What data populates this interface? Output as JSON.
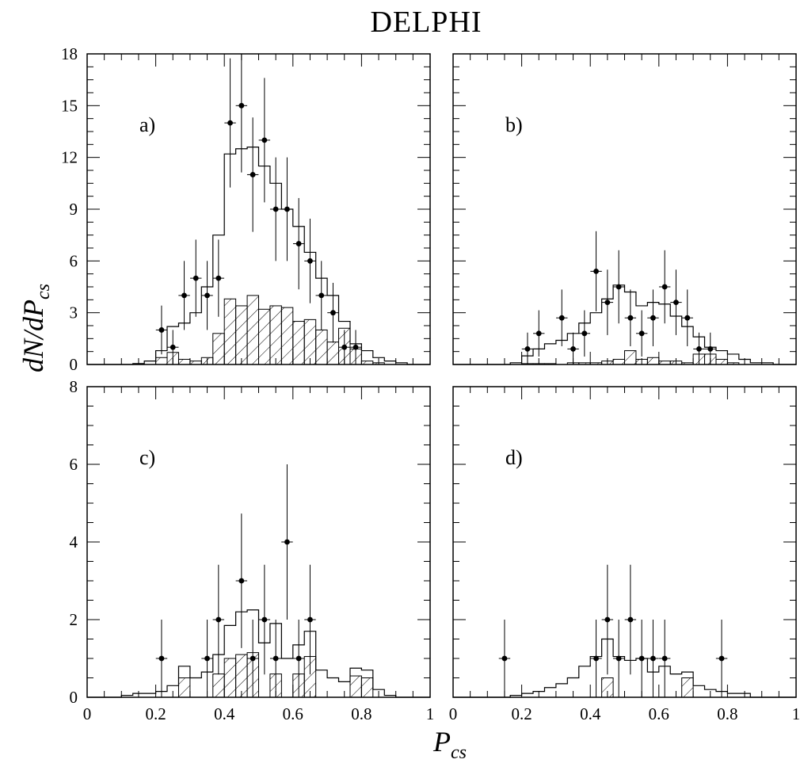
{
  "chart_data": {
    "type": "histogram",
    "title": "DELPHI",
    "xlabel": {
      "main": "P",
      "sub": "cs"
    },
    "ylabel": {
      "main": "dN/dP",
      "sub": "cs"
    },
    "x_axis": {
      "range": [
        0,
        1
      ],
      "tick_labels": [
        "0",
        "0.2",
        "0.4",
        "0.6",
        "0.8",
        "1"
      ]
    },
    "bin_edges": [
      0.0,
      0.0333,
      0.0667,
      0.1,
      0.1333,
      0.1667,
      0.2,
      0.2333,
      0.2667,
      0.3,
      0.3333,
      0.3667,
      0.4,
      0.4333,
      0.4667,
      0.5,
      0.5333,
      0.5667,
      0.6,
      0.6333,
      0.6667,
      0.7,
      0.7333,
      0.7667,
      0.8,
      0.8333,
      0.8667,
      0.9,
      0.9333,
      0.9667,
      1.0
    ],
    "panels": [
      {
        "label": "a)",
        "ylim": [
          0,
          18
        ],
        "y_tick_labels": [
          "0",
          "3",
          "6",
          "9",
          "12",
          "15",
          "18"
        ],
        "total_mc": [
          0,
          0,
          0,
          0,
          0.05,
          0.2,
          0.8,
          2.2,
          2.4,
          3.0,
          4.5,
          7.5,
          12.2,
          12.5,
          12.6,
          11.5,
          10.5,
          9.0,
          8.0,
          6.5,
          5.0,
          4.0,
          2.5,
          1.2,
          0.8,
          0.4,
          0.2,
          0.1,
          0,
          0
        ],
        "hatched_mc": [
          0,
          0,
          0,
          0,
          0,
          0,
          0.4,
          0.7,
          0.3,
          0.2,
          0.4,
          1.8,
          3.8,
          3.4,
          4.0,
          3.2,
          3.4,
          3.3,
          2.5,
          2.6,
          2.0,
          1.3,
          2.1,
          0.9,
          0.2,
          0.1,
          0,
          0,
          0,
          0
        ],
        "data_x": [
          0.217,
          0.25,
          0.283,
          0.317,
          0.35,
          0.383,
          0.417,
          0.45,
          0.483,
          0.517,
          0.55,
          0.583,
          0.617,
          0.65,
          0.683,
          0.717,
          0.75,
          0.783
        ],
        "data_y": [
          2,
          1,
          4,
          5,
          4,
          5,
          14,
          15,
          11,
          13,
          9,
          9,
          7,
          6,
          4,
          3,
          1,
          1
        ]
      },
      {
        "label": "b)",
        "ylim": [
          0,
          18
        ],
        "y_tick_labels": [],
        "total_mc": [
          0,
          0,
          0,
          0,
          0,
          0.1,
          0.5,
          0.9,
          1.2,
          1.4,
          1.8,
          2.4,
          3.0,
          3.8,
          4.6,
          4.2,
          3.4,
          3.6,
          3.5,
          2.8,
          2.2,
          1.6,
          1.0,
          0.8,
          0.6,
          0.3,
          0.1,
          0.1,
          0,
          0
        ],
        "hatched_mc": [
          0,
          0,
          0,
          0,
          0,
          0,
          0.05,
          0.05,
          0.05,
          0,
          0.1,
          0.1,
          0.1,
          0.2,
          0.3,
          0.8,
          0.3,
          0.4,
          0.2,
          0.2,
          0.1,
          0.6,
          0.6,
          0.3,
          0.1,
          0,
          0,
          0,
          0,
          0
        ],
        "data_x": [
          0.217,
          0.25,
          0.317,
          0.35,
          0.383,
          0.417,
          0.45,
          0.483,
          0.517,
          0.55,
          0.583,
          0.617,
          0.65,
          0.683,
          0.717,
          0.75
        ],
        "data_y": [
          0.9,
          1.8,
          2.7,
          0.9,
          1.8,
          5.4,
          3.6,
          4.5,
          2.7,
          1.8,
          2.7,
          4.5,
          3.6,
          2.7,
          0.9,
          0.9
        ]
      },
      {
        "label": "c)",
        "ylim": [
          0,
          8
        ],
        "y_tick_labels": [
          "0",
          "2",
          "4",
          "6",
          "8"
        ],
        "total_mc": [
          0,
          0,
          0,
          0.05,
          0.1,
          0.1,
          0.15,
          0.3,
          0.8,
          0.5,
          0.65,
          1.1,
          1.85,
          2.2,
          2.25,
          1.4,
          1.9,
          1.0,
          1.35,
          1.7,
          0.7,
          0.5,
          0.4,
          0.75,
          0.7,
          0.2,
          0.05,
          0,
          0,
          0
        ],
        "hatched_mc": [
          0,
          0,
          0,
          0,
          0,
          0,
          0,
          0,
          0.5,
          0,
          0,
          0.6,
          1.0,
          1.1,
          1.15,
          0,
          0.6,
          0,
          0.6,
          1.05,
          0,
          0,
          0,
          0.55,
          0.5,
          0,
          0,
          0,
          0,
          0
        ],
        "data_x": [
          0.217,
          0.35,
          0.383,
          0.45,
          0.483,
          0.517,
          0.55,
          0.583,
          0.617,
          0.65
        ],
        "data_y": [
          1,
          1,
          2,
          3,
          1,
          2,
          1,
          4,
          1,
          2
        ]
      },
      {
        "label": "d)",
        "ylim": [
          0,
          8
        ],
        "y_tick_labels": [],
        "total_mc": [
          0,
          0,
          0,
          0,
          0,
          0.05,
          0.1,
          0.15,
          0.25,
          0.35,
          0.5,
          0.8,
          1.05,
          1.5,
          1.05,
          0.95,
          1.0,
          0.65,
          0.8,
          0.6,
          0.65,
          0.3,
          0.2,
          0.15,
          0.1,
          0.1,
          0,
          0,
          0,
          0
        ],
        "hatched_mc": [
          0,
          0,
          0,
          0,
          0,
          0,
          0,
          0,
          0,
          0,
          0,
          0,
          0,
          0.5,
          0,
          0,
          0,
          0,
          0,
          0,
          0.5,
          0,
          0,
          0,
          0,
          0,
          0,
          0,
          0,
          0
        ],
        "data_x": [
          0.15,
          0.417,
          0.45,
          0.483,
          0.517,
          0.55,
          0.583,
          0.617,
          0.783
        ],
        "data_y": [
          1,
          1,
          2,
          1,
          2,
          1,
          1,
          1,
          1
        ]
      }
    ]
  }
}
